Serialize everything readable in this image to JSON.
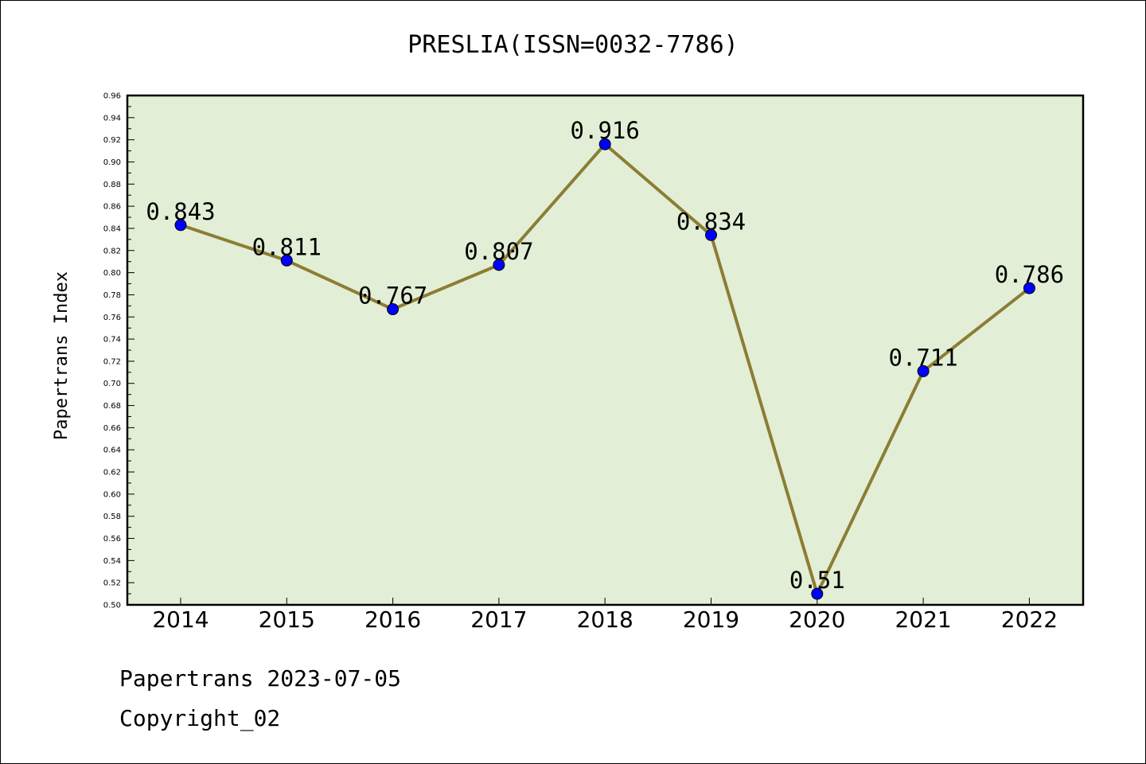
{
  "chart_data": {
    "type": "line",
    "title": "PRESLIA(ISSN=0032-7786)",
    "xlabel": "",
    "ylabel": "Papertrans Index",
    "categories": [
      "2014",
      "2015",
      "2016",
      "2017",
      "2018",
      "2019",
      "2020",
      "2021",
      "2022"
    ],
    "series": [
      {
        "values": [
          0.843,
          0.811,
          0.767,
          0.807,
          0.916,
          0.834,
          0.51,
          0.711,
          0.786
        ],
        "labels": [
          "0.843",
          "0.811",
          "0.767",
          "0.807",
          "0.916",
          "0.834",
          "0.51",
          "0.711",
          "0.786"
        ]
      }
    ],
    "ylim": [
      0.5,
      0.96
    ],
    "yticks": [
      "0.50",
      "0.52",
      "0.54",
      "0.56",
      "0.58",
      "0.60",
      "0.62",
      "0.64",
      "0.66",
      "0.68",
      "0.70",
      "0.72",
      "0.74",
      "0.76",
      "0.78",
      "0.80",
      "0.82",
      "0.84",
      "0.86",
      "0.88",
      "0.90",
      "0.92",
      "0.94",
      "0.96"
    ],
    "grid": false,
    "colors": {
      "plot_background": "#e2efd6",
      "line": "#8c7d35",
      "marker": "#0000ff"
    }
  },
  "footer": {
    "line1": "Papertrans 2023-07-05",
    "line2": "Copyright_02"
  }
}
